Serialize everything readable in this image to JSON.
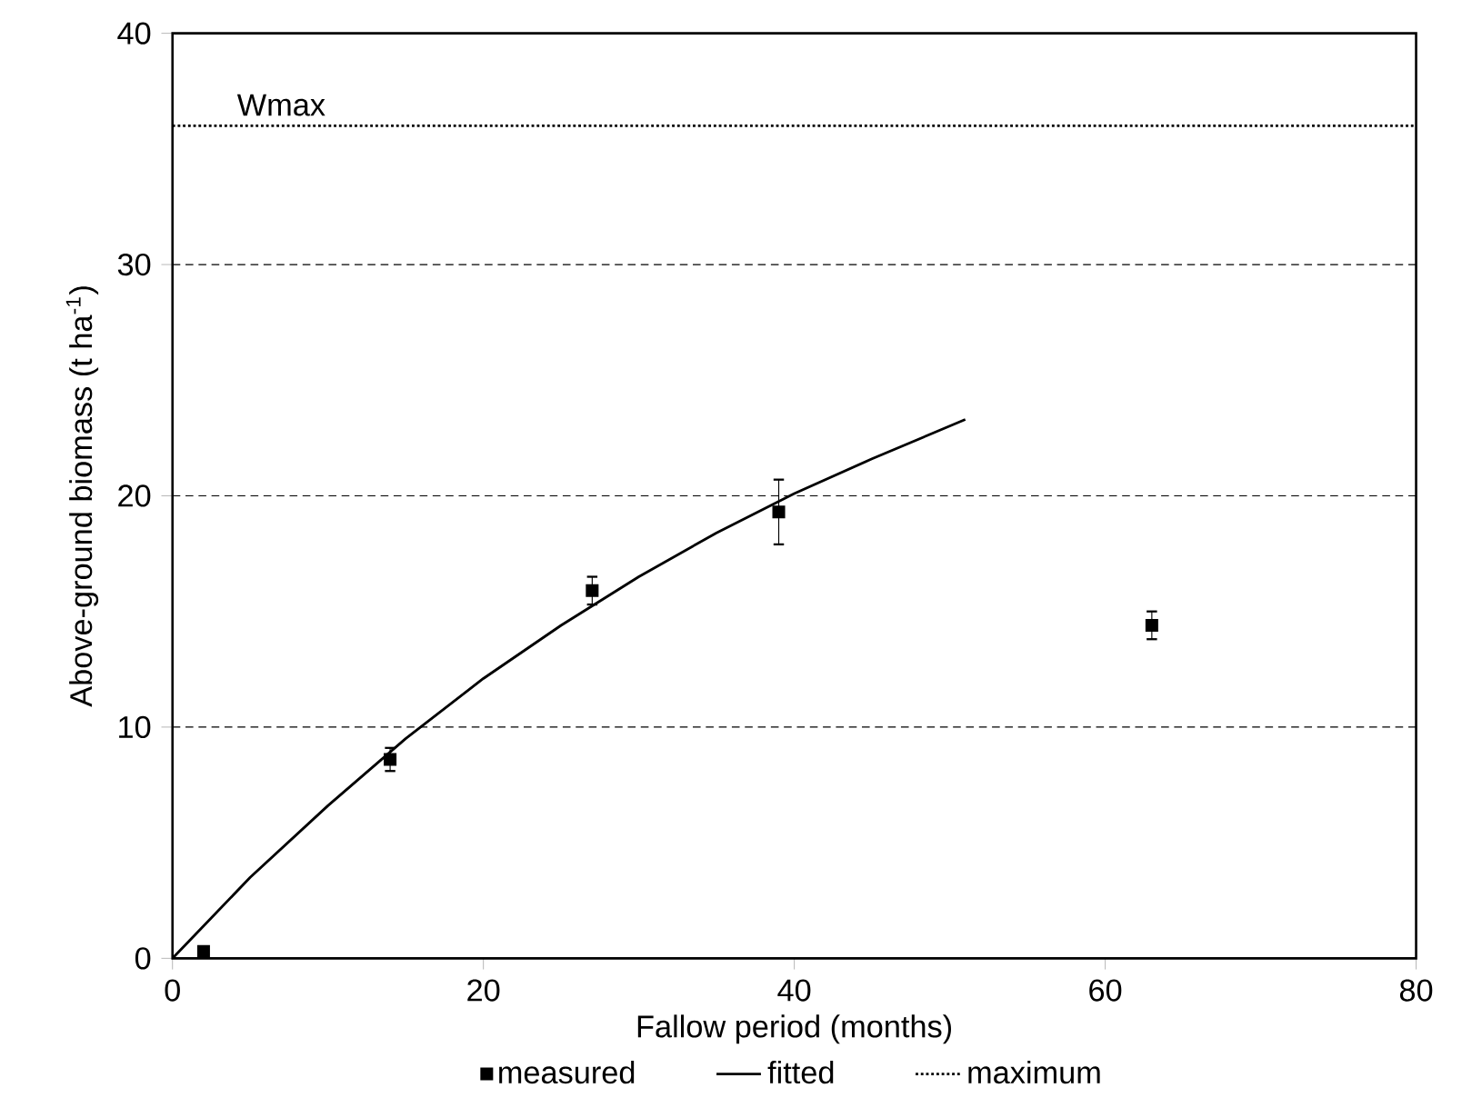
{
  "chart_data": {
    "type": "scatter",
    "xlabel": "Fallow period (months)",
    "ylabel": "Above-ground biomass (t ha$^{-1}$)",
    "xlim": [
      0,
      80
    ],
    "xticks": [
      0,
      20,
      40,
      60,
      80
    ],
    "ylim": [
      0,
      40
    ],
    "yticks": [
      0,
      10,
      20,
      30,
      40
    ],
    "grid": "y",
    "legend": "bottom",
    "annotations": [
      {
        "text": "Wmax",
        "x": 7,
        "y": 36
      }
    ],
    "series": [
      {
        "name": "measured",
        "marker": "square",
        "color": "#000000",
        "x": [
          2,
          14,
          27,
          39,
          63
        ],
        "values": [
          0.3,
          8.6,
          15.9,
          19.3,
          14.4
        ],
        "errors": [
          null,
          0.5,
          0.6,
          1.4,
          0.6
        ]
      },
      {
        "name": "fitted",
        "type": "line",
        "line_style": "solid",
        "color": "#000000",
        "x": [
          0,
          5,
          10,
          15,
          20,
          25,
          30,
          35,
          40,
          45,
          51
        ],
        "values": [
          0,
          3.5,
          6.6,
          9.5,
          12.1,
          14.4,
          16.5,
          18.4,
          20.1,
          21.6,
          23.3
        ]
      },
      {
        "name": "maximum",
        "type": "line",
        "line_style": "dotted",
        "color": "#000000",
        "x": [
          0,
          80
        ],
        "values": [
          36,
          36
        ]
      }
    ]
  }
}
